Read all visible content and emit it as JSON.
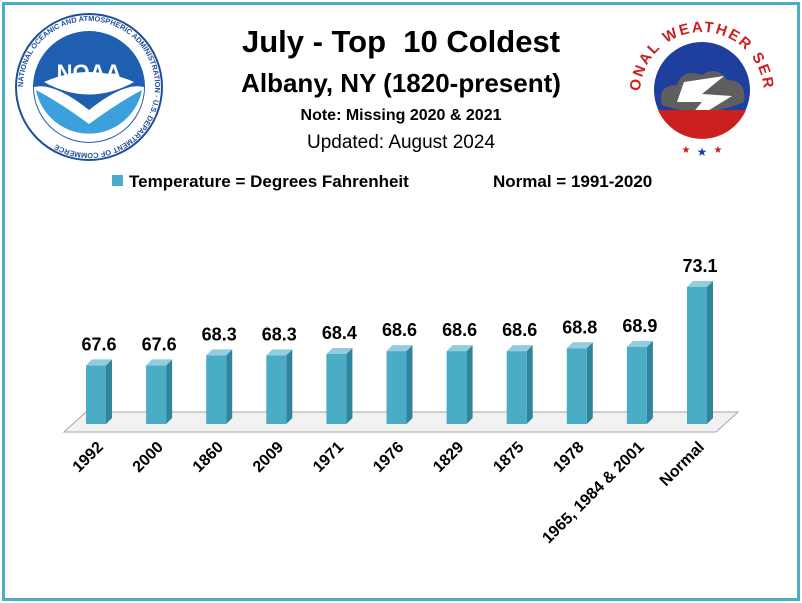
{
  "header": {
    "title": "July - Top  10 Coldest",
    "subtitle": "Albany, NY (1820-present)",
    "note": "Note: Missing 2020 & 2021",
    "updated": "Updated: August 2024"
  },
  "logos": {
    "left_icon": "noaa-logo",
    "left_text": "NOAA",
    "left_ring_text": "NATIONAL OCEANIC AND ATMOSPHERIC ADMINISTRATION · U.S. DEPARTMENT OF COMMERCE",
    "right_icon": "nws-logo",
    "right_ring_text": "NATIONAL WEATHER SERVICE"
  },
  "legend": {
    "series_label": "Temperature = Degrees Fahrenheit",
    "normal_label": "Normal = 1991-2020"
  },
  "colors": {
    "bar": "#4bacc6",
    "bar_side": "#31849b",
    "bar_top": "#93cddd",
    "frame": "#4bacc6"
  },
  "chart_data": {
    "type": "bar",
    "categories": [
      "1992",
      "2000",
      "1860",
      "2009",
      "1971",
      "1976",
      "1829",
      "1875",
      "1978",
      "1965, 1984 & 2001",
      "Normal"
    ],
    "series": [
      {
        "name": "Temperature = Degrees Fahrenheit",
        "values": [
          67.6,
          67.6,
          68.3,
          68.3,
          68.4,
          68.6,
          68.6,
          68.6,
          68.8,
          68.9,
          73.1
        ]
      }
    ],
    "data_labels": [
      "67.6",
      "67.6",
      "68.3",
      "68.3",
      "68.4",
      "68.6",
      "68.6",
      "68.6",
      "68.8",
      "68.9",
      "73.1"
    ],
    "title": "July - Top  10 Coldest",
    "xlabel": "",
    "ylabel": "",
    "ylim": [
      63.5,
      74
    ],
    "grid": false,
    "legend_position": "top"
  }
}
